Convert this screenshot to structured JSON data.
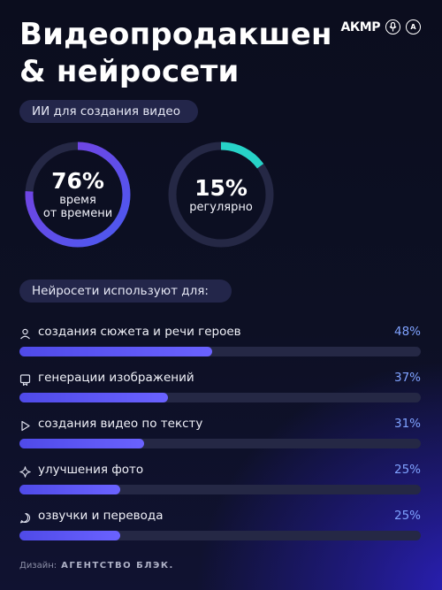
{
  "header": {
    "title_line1": "Видеопродакшен",
    "title_line2": "& нейросети",
    "logos": {
      "akmr": "АКМР",
      "circle2": "A"
    }
  },
  "section_ai": {
    "label": "ИИ для создания видео"
  },
  "stats": [
    {
      "percent": 76,
      "percent_label": "76%",
      "caption_line1": "время",
      "caption_line2": "от времени",
      "color_start": "#4a5af0",
      "color_end": "#7a3fe0"
    },
    {
      "percent": 15,
      "percent_label": "15%",
      "caption_line1": "регулярно",
      "caption_line2": "",
      "color_start": "#27d3c8",
      "color_end": "#27d3c8"
    }
  ],
  "section_uses": {
    "label": "Нейросети используют для:"
  },
  "chart_data": {
    "type": "bar",
    "orientation": "horizontal",
    "categories": [
      "создания сюжета и речи героев",
      "генерации изображений",
      "создания видео по тексту",
      "улучшения фото",
      "озвучки и перевода"
    ],
    "values": [
      48,
      37,
      31,
      25,
      25
    ],
    "value_labels": [
      "48%",
      "37%",
      "31%",
      "25%",
      "25%"
    ],
    "icons": [
      "person-icon",
      "image-icon",
      "play-icon",
      "sparkle-icon",
      "chat-icon"
    ],
    "xlim": [
      0,
      100
    ],
    "unit": "%",
    "bar_color": "#5b55f2",
    "track_color": "#252845",
    "value_color": "#7fa2ff"
  },
  "footer": {
    "prefix": "Дизайн:",
    "brand": "АГЕНТСТВО БЛЭК."
  }
}
